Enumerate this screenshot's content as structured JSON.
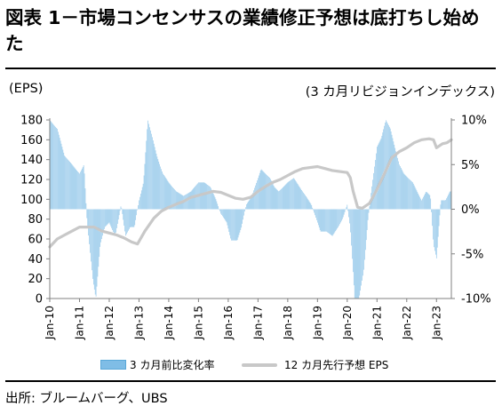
{
  "header": {
    "title": "図表 1－市場コンセンサスの業績修正予想は底打ちし始めた"
  },
  "labels": {
    "left_axis_unit": "(EPS)",
    "right_axis_unit": "(3 カ月リビジョンインデックス)",
    "source": "出所: ブルームバーグ、UBS"
  },
  "legend": {
    "bars": "3 カ月前比変化率",
    "line": "12 カ月先行予想 EPS"
  },
  "colors": {
    "bars": "#7fbde6",
    "line": "#c8c8c8",
    "axis": "#808080"
  },
  "chart_data": {
    "type": "bar+line",
    "x_tick_labels": [
      "Jan-10",
      "Jan-11",
      "Jan-12",
      "Jan-13",
      "Jan-14",
      "Jan-15",
      "Jan-16",
      "Jan-17",
      "Jan-18",
      "Jan-19",
      "Jan-20",
      "Jan-21",
      "Jan-22",
      "Jan-23"
    ],
    "x_range": [
      2010.0,
      2023.5
    ],
    "y_left": {
      "range": [
        0,
        180
      ],
      "ticks": [
        0,
        20,
        40,
        60,
        80,
        100,
        120,
        140,
        160,
        180
      ]
    },
    "y_right": {
      "range_percent": [
        -10,
        10
      ],
      "ticks": [
        "-10%",
        "-5%",
        "0%",
        "5%",
        "10%"
      ]
    },
    "series": [
      {
        "name": "3 カ月前比変化率",
        "axis": "right",
        "kind": "bar",
        "unit": "%",
        "points": [
          [
            2010.0,
            10.0
          ],
          [
            2010.25,
            9.0
          ],
          [
            2010.5,
            6.0
          ],
          [
            2010.75,
            5.0
          ],
          [
            2011.0,
            4.0
          ],
          [
            2011.15,
            5.0
          ],
          [
            2011.25,
            -1.0
          ],
          [
            2011.45,
            -8.0
          ],
          [
            2011.55,
            -10.0
          ],
          [
            2011.7,
            -4.0
          ],
          [
            2011.85,
            -2.0
          ],
          [
            2012.0,
            -1.5
          ],
          [
            2012.2,
            -3.0
          ],
          [
            2012.4,
            0.5
          ],
          [
            2012.55,
            -3.0
          ],
          [
            2012.7,
            -2.0
          ],
          [
            2012.85,
            -2.0
          ],
          [
            2013.0,
            1.0
          ],
          [
            2013.15,
            3.0
          ],
          [
            2013.3,
            10.0
          ],
          [
            2013.45,
            8.0
          ],
          [
            2013.6,
            6.0
          ],
          [
            2013.8,
            4.0
          ],
          [
            2014.0,
            3.0
          ],
          [
            2014.25,
            2.0
          ],
          [
            2014.5,
            1.5
          ],
          [
            2014.75,
            2.0
          ],
          [
            2015.0,
            3.0
          ],
          [
            2015.2,
            3.0
          ],
          [
            2015.4,
            2.5
          ],
          [
            2015.6,
            1.0
          ],
          [
            2015.75,
            -0.5
          ],
          [
            2015.95,
            -1.5
          ],
          [
            2016.1,
            -3.5
          ],
          [
            2016.3,
            -3.5
          ],
          [
            2016.45,
            -2.0
          ],
          [
            2016.6,
            0.5
          ],
          [
            2016.8,
            1.5
          ],
          [
            2016.95,
            3.0
          ],
          [
            2017.1,
            4.5
          ],
          [
            2017.25,
            4.0
          ],
          [
            2017.4,
            3.5
          ],
          [
            2017.55,
            2.5
          ],
          [
            2017.7,
            2.0
          ],
          [
            2017.85,
            2.5
          ],
          [
            2018.0,
            3.0
          ],
          [
            2018.2,
            3.5
          ],
          [
            2018.4,
            2.5
          ],
          [
            2018.6,
            1.5
          ],
          [
            2018.8,
            0.5
          ],
          [
            2018.95,
            -1.0
          ],
          [
            2019.1,
            -2.5
          ],
          [
            2019.3,
            -2.5
          ],
          [
            2019.5,
            -3.0
          ],
          [
            2019.7,
            -2.0
          ],
          [
            2019.85,
            -1.0
          ],
          [
            2020.0,
            0.5
          ],
          [
            2020.1,
            -2.0
          ],
          [
            2020.25,
            -10.0
          ],
          [
            2020.4,
            -10.0
          ],
          [
            2020.55,
            -7.0
          ],
          [
            2020.7,
            -1.0
          ],
          [
            2020.85,
            3.0
          ],
          [
            2021.0,
            7.0
          ],
          [
            2021.15,
            8.0
          ],
          [
            2021.3,
            10.0
          ],
          [
            2021.45,
            9.0
          ],
          [
            2021.6,
            7.0
          ],
          [
            2021.75,
            5.0
          ],
          [
            2021.9,
            4.0
          ],
          [
            2022.05,
            3.5
          ],
          [
            2022.2,
            3.0
          ],
          [
            2022.35,
            2.0
          ],
          [
            2022.5,
            1.0
          ],
          [
            2022.65,
            2.0
          ],
          [
            2022.8,
            1.5
          ],
          [
            2022.9,
            -4.0
          ],
          [
            2023.0,
            -5.5
          ],
          [
            2023.15,
            1.0
          ],
          [
            2023.3,
            1.0
          ],
          [
            2023.45,
            2.0
          ]
        ]
      },
      {
        "name": "12 カ月先行予想 EPS",
        "axis": "left",
        "kind": "line",
        "points": [
          [
            2010.0,
            52
          ],
          [
            2010.25,
            60
          ],
          [
            2010.5,
            64
          ],
          [
            2010.75,
            68
          ],
          [
            2011.0,
            72
          ],
          [
            2011.5,
            72
          ],
          [
            2011.75,
            68
          ],
          [
            2012.0,
            66
          ],
          [
            2012.25,
            64
          ],
          [
            2012.5,
            61
          ],
          [
            2012.75,
            57
          ],
          [
            2012.95,
            55
          ],
          [
            2013.2,
            68
          ],
          [
            2013.5,
            81
          ],
          [
            2013.75,
            88
          ],
          [
            2014.0,
            92
          ],
          [
            2014.25,
            95
          ],
          [
            2014.5,
            98
          ],
          [
            2014.75,
            102
          ],
          [
            2015.0,
            104
          ],
          [
            2015.25,
            106
          ],
          [
            2015.5,
            108
          ],
          [
            2015.75,
            107
          ],
          [
            2016.0,
            104
          ],
          [
            2016.25,
            101
          ],
          [
            2016.5,
            100
          ],
          [
            2016.75,
            102
          ],
          [
            2017.0,
            108
          ],
          [
            2017.25,
            113
          ],
          [
            2017.5,
            117
          ],
          [
            2017.75,
            120
          ],
          [
            2018.0,
            124
          ],
          [
            2018.25,
            128
          ],
          [
            2018.5,
            131
          ],
          [
            2018.75,
            132
          ],
          [
            2019.0,
            133
          ],
          [
            2019.25,
            131
          ],
          [
            2019.5,
            129
          ],
          [
            2019.75,
            128
          ],
          [
            2020.0,
            127
          ],
          [
            2020.1,
            122
          ],
          [
            2020.2,
            108
          ],
          [
            2020.35,
            92
          ],
          [
            2020.5,
            91
          ],
          [
            2020.75,
            96
          ],
          [
            2021.0,
            110
          ],
          [
            2021.25,
            126
          ],
          [
            2021.5,
            142
          ],
          [
            2021.75,
            148
          ],
          [
            2022.0,
            152
          ],
          [
            2022.25,
            157
          ],
          [
            2022.5,
            160
          ],
          [
            2022.75,
            161
          ],
          [
            2022.9,
            160
          ],
          [
            2023.0,
            152
          ],
          [
            2023.2,
            156
          ],
          [
            2023.35,
            157
          ],
          [
            2023.5,
            160
          ]
        ]
      }
    ]
  }
}
